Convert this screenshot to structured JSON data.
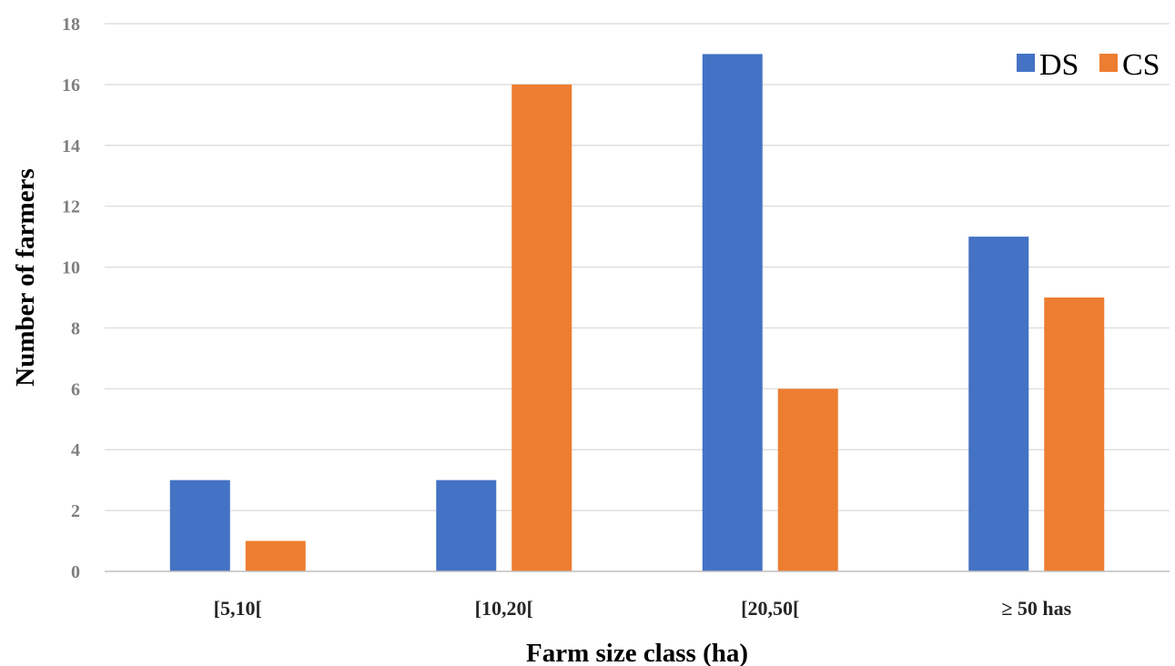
{
  "chart_data": {
    "type": "bar",
    "categories": [
      "[5,10[",
      "[10,20[",
      "[20,50[",
      "≥ 50 has"
    ],
    "series": [
      {
        "name": "DS",
        "values": [
          3,
          3,
          17,
          11
        ],
        "color": "#4472c4"
      },
      {
        "name": "CS",
        "values": [
          1,
          16,
          6,
          9
        ],
        "color": "#ed7d31"
      }
    ],
    "xlabel": "Farm size class (ha)",
    "ylabel": "Number of farmers",
    "ylim": [
      0,
      18
    ],
    "yticks": [
      "0",
      "2",
      "4",
      "6",
      "8",
      "10",
      "12",
      "14",
      "16",
      "18"
    ],
    "grid": true,
    "legend_position": "top-right"
  }
}
